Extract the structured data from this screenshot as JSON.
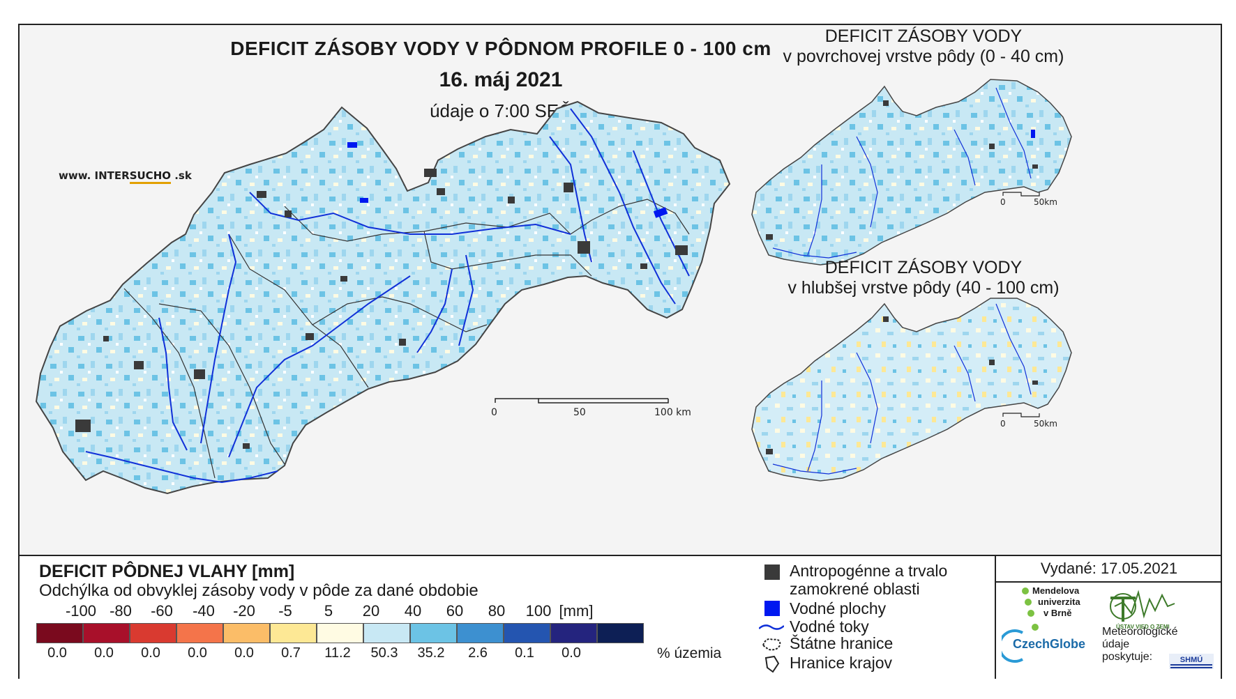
{
  "title": "DEFICIT ZÁSOBY VODY V PÔDNOM PROFILE 0 - 100 cm",
  "date": "16. máj 2021",
  "time_note": "údaje o 7:00 SEČ",
  "website": {
    "prefix": "www. INTER",
    "highlight": "SUCHO",
    "suffix": " .sk"
  },
  "inset_top": {
    "line1": "DEFICIT ZÁSOBY VODY",
    "line2": "v povrchovej vrstve pôdy (0 - 40 cm)"
  },
  "inset_bottom": {
    "line1": "DEFICIT ZÁSOBY VODY",
    "line2": "v hlubšej vrstve pôdy (40 - 100 cm)"
  },
  "scale_main": {
    "labels": [
      "0",
      "50",
      "100 km"
    ]
  },
  "scale_inset": {
    "labels": [
      "0",
      "50km"
    ]
  },
  "legend": {
    "title": "DEFICIT PÔDNEJ VLAHY [mm]",
    "subtitle": "Odchýlka od obvyklej zásoby vody v pôde za dané obdobie",
    "ticks": [
      "-100",
      "-80",
      "-60",
      "-40",
      "-20",
      "-5",
      "5",
      "20",
      "40",
      "60",
      "80",
      "100",
      "[mm]"
    ],
    "classes": [
      {
        "color": "#7a0a1e",
        "pct": "0.0"
      },
      {
        "color": "#a8102a",
        "pct": "0.0"
      },
      {
        "color": "#d93a30",
        "pct": "0.0"
      },
      {
        "color": "#f4744a",
        "pct": "0.0"
      },
      {
        "color": "#fbbd68",
        "pct": "0.0"
      },
      {
        "color": "#fde895",
        "pct": "0.7"
      },
      {
        "color": "#fffbe3",
        "pct": "11.2"
      },
      {
        "color": "#c8e8f4",
        "pct": "50.3"
      },
      {
        "color": "#6cc3e5",
        "pct": "35.2"
      },
      {
        "color": "#3d90d0",
        "pct": "2.6"
      },
      {
        "color": "#2455b0",
        "pct": "0.1"
      },
      {
        "color": "#24247e",
        "pct": "0.0"
      },
      {
        "color": "#0d1f55",
        "pct": ""
      }
    ],
    "pct_unit": "% územia"
  },
  "symbols": {
    "anthropogenic_line1": "Antropogénne a trvalo",
    "anthropogenic_line2": "zamokrené oblasti",
    "water_bodies": "Vodné plochy",
    "rivers": "Vodné toky",
    "state_border": "Štátne hranice",
    "region_border": "Hranice krajov"
  },
  "issued": "Vydané: 17.05.2021",
  "logos": {
    "mendelu_line1": "Mendelova",
    "mendelu_line2": "univerzita",
    "mendelu_line3": "v Brně",
    "ustav": "ÚSTAV VIED O ZEMI",
    "czechglobe": "CzechGlobe",
    "meteo_line1": "Meteorologické",
    "meteo_line2": "údaje",
    "meteo_line3": "poskytuje:",
    "shmu": "SHMÚ"
  },
  "colors": {
    "light_blue": "#c8e8f4",
    "mid_blue": "#6cc3e5",
    "pale_yellow": "#fffbe3",
    "urban": "#3a3a3a",
    "river": "#1030d8",
    "water": "#0018f0"
  }
}
